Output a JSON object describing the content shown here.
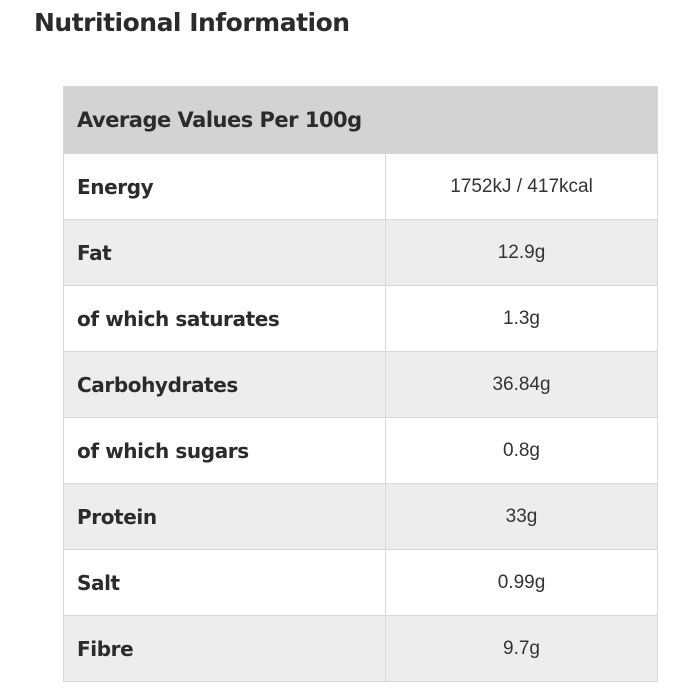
{
  "title": "Nutritional Information",
  "header": "Average Values Per 100g",
  "rows": [
    {
      "label": "Energy",
      "value": "1752kJ / 417kcal"
    },
    {
      "label": "Fat",
      "value": "12.9g"
    },
    {
      "label": "of which saturates",
      "value": "1.3g"
    },
    {
      "label": "Carbohydrates",
      "value": "36.84g"
    },
    {
      "label": "of which sugars",
      "value": "0.8g"
    },
    {
      "label": "Protein",
      "value": "33g"
    },
    {
      "label": "Salt",
      "value": "0.99g"
    },
    {
      "label": "Fibre",
      "value": "9.7g"
    }
  ]
}
